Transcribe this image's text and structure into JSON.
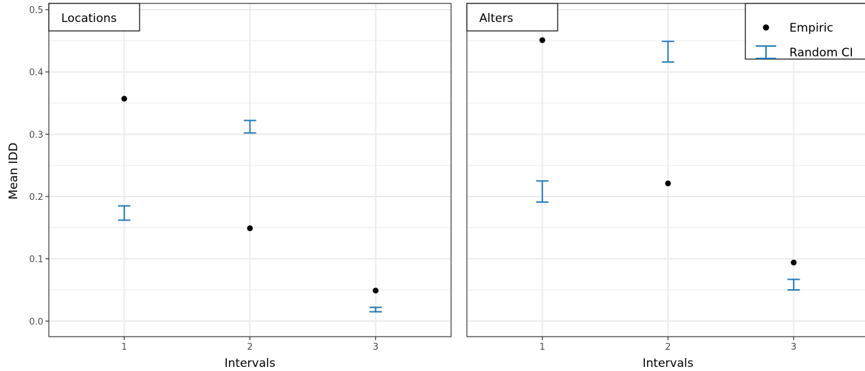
{
  "chart_data": {
    "type": "scatter",
    "ylabel": "Mean IDD",
    "ylim": [
      -0.025,
      0.51
    ],
    "yticks": [
      "0.0",
      "0.1",
      "0.2",
      "0.3",
      "0.4",
      "0.5"
    ],
    "xticks": [
      "1",
      "2",
      "3"
    ],
    "xlim": [
      0.4,
      3.6
    ],
    "grid": true,
    "colors": {
      "empiric": "#000000",
      "random_ci": "#1f78b4"
    },
    "legend": {
      "placement": "top-right",
      "entries": [
        {
          "label": "Empiric",
          "marker": "point"
        },
        {
          "label": "Random CI",
          "marker": "errorbar"
        }
      ]
    },
    "panels": [
      {
        "strip": "Locations",
        "xlabel": "Intervals",
        "x": [
          1,
          2,
          3
        ],
        "empiric": [
          0.357,
          0.149,
          0.049
        ],
        "ci_low": [
          0.162,
          0.302,
          0.015
        ],
        "ci_high": [
          0.185,
          0.322,
          0.022
        ]
      },
      {
        "strip": "Alters",
        "xlabel": "Intervals",
        "x": [
          1,
          2,
          3
        ],
        "empiric": [
          0.451,
          0.221,
          0.094
        ],
        "ci_low": [
          0.191,
          0.416,
          0.05
        ],
        "ci_high": [
          0.225,
          0.449,
          0.067
        ]
      }
    ]
  }
}
